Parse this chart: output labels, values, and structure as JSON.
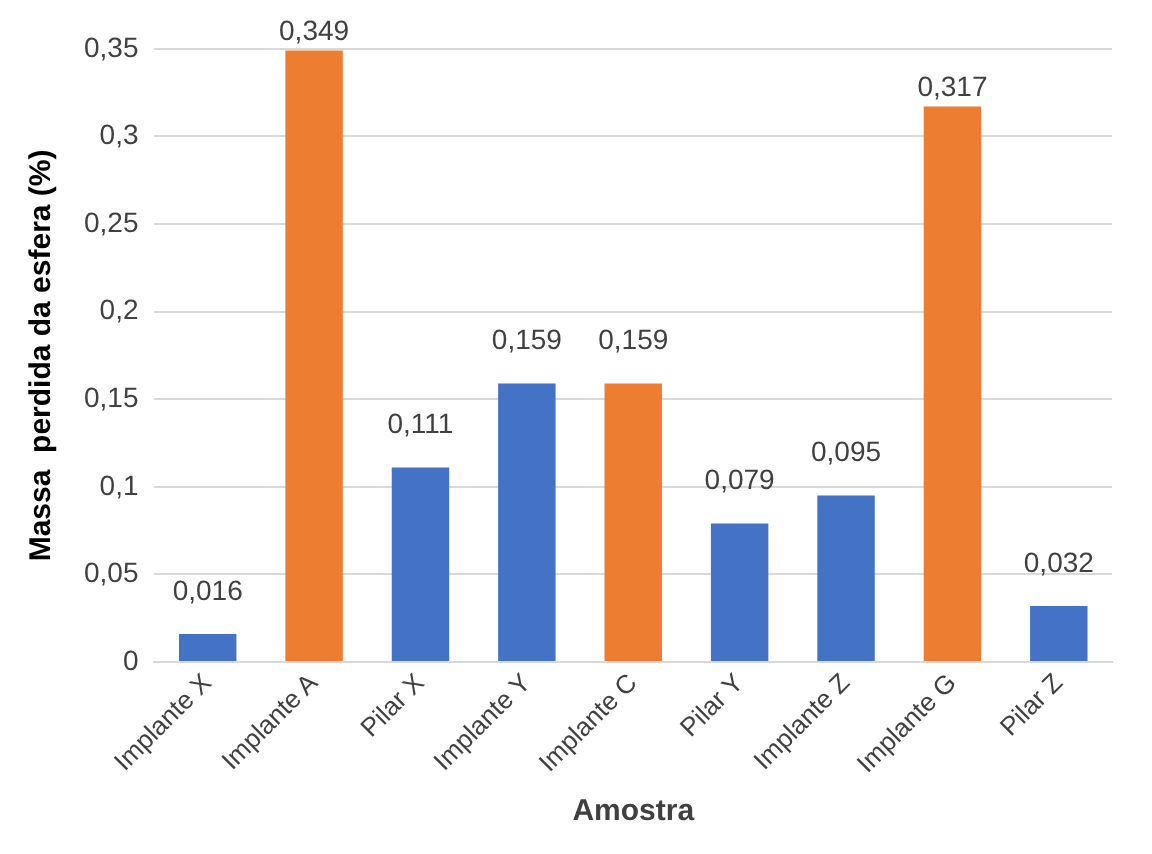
{
  "chart_data": {
    "type": "bar",
    "xlabel": "Amostra",
    "ylabel": "Massa  perdida da esfera (%)",
    "categories": [
      "Implante X",
      "Implante A",
      "Pilar X",
      "Implante Y",
      "Implante C",
      "Pilar Y",
      "Implante Z",
      "Implante G",
      "Pilar Z"
    ],
    "values": [
      0.016,
      0.349,
      0.111,
      0.159,
      0.159,
      0.079,
      0.095,
      0.317,
      0.032
    ],
    "colors": [
      "#4472c4",
      "#ed7d31",
      "#4472c4",
      "#4472c4",
      "#ed7d31",
      "#4472c4",
      "#4472c4",
      "#ed7d31",
      "#4472c4"
    ],
    "value_labels": [
      "0,016",
      "0,349",
      "0,111",
      "0,159",
      "0,159",
      "0,079",
      "0,095",
      "0,317",
      "0,032"
    ],
    "ylim": [
      0,
      0.35
    ],
    "yticks": [
      0,
      {
        "value": 0.05,
        "label": "0,05"
      },
      {
        "value": 0.1,
        "label": "0,1"
      },
      {
        "value": 0.15,
        "label": "0,15"
      },
      {
        "value": 0.2,
        "label": "0,2"
      },
      {
        "value": 0.25,
        "label": "0,25"
      },
      {
        "value": 0.3,
        "label": "0,3"
      },
      {
        "value": 0.35,
        "label": "0,35"
      }
    ],
    "grid": "y",
    "legend": false
  }
}
